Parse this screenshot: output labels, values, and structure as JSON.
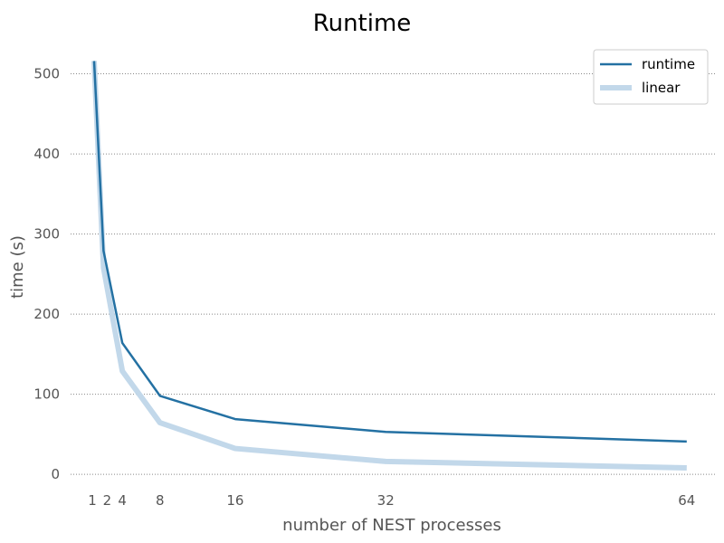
{
  "chart_data": {
    "type": "line",
    "title": "Runtime",
    "xlabel": "number of NEST processes",
    "ylabel": "time (s)",
    "x": [
      1,
      2,
      4,
      8,
      16,
      32,
      64
    ],
    "xticks": [
      1,
      2,
      4,
      8,
      16,
      32,
      64
    ],
    "xlim": [
      -1.5,
      67
    ],
    "ylim": [
      -10,
      530
    ],
    "yticks": [
      0,
      100,
      200,
      300,
      400,
      500
    ],
    "grid": "y-dotted",
    "legend_position": "top-right",
    "series": [
      {
        "name": "runtime",
        "color": "#2471a3",
        "values": [
          516,
          279,
          164,
          98,
          69,
          53,
          41
        ]
      },
      {
        "name": "linear",
        "color": "#c2d8ea",
        "values": [
          516,
          258,
          129,
          64.5,
          32.3,
          16.1,
          8.1
        ]
      }
    ]
  }
}
